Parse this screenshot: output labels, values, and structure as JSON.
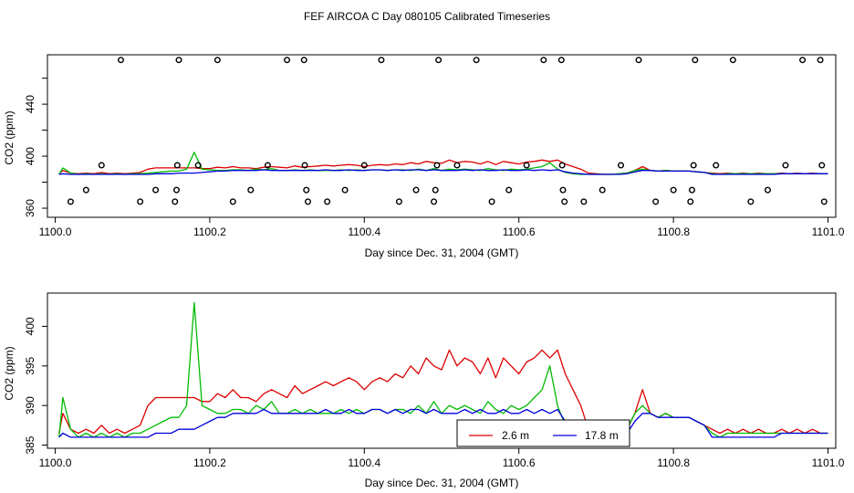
{
  "title": "FEF AIRCOA C  Day 080105  Calibrated Timeseries",
  "colors": {
    "red": "#dd0000",
    "green": "#00bb00",
    "blue": "#0000dd",
    "axis": "#000000"
  },
  "chart_data": [
    {
      "type": "line",
      "xlabel": "Day since Dec. 31, 2004 (GMT)",
      "ylabel": "CO2 (ppm)",
      "xlim": [
        1099.99,
        1101.01
      ],
      "ylim": [
        353,
        478
      ],
      "xticks": [
        1100.0,
        1100.2,
        1100.4,
        1100.6,
        1100.8,
        1101.0
      ],
      "xtick_labels": [
        "1100.0",
        "1100.2",
        "1100.4",
        "1100.6",
        "1100.8",
        "1101.0"
      ],
      "yticks": [
        360,
        380,
        400,
        420,
        440,
        460
      ],
      "ytick_labels": [
        "360",
        "",
        "400",
        "",
        "440",
        ""
      ],
      "x": [
        1100.005,
        1100.01,
        1100.02,
        1100.03,
        1100.04,
        1100.05,
        1100.06,
        1100.07,
        1100.08,
        1100.09,
        1100.1,
        1100.11,
        1100.12,
        1100.13,
        1100.14,
        1100.15,
        1100.16,
        1100.17,
        1100.18,
        1100.19,
        1100.2,
        1100.21,
        1100.22,
        1100.23,
        1100.24,
        1100.25,
        1100.26,
        1100.27,
        1100.28,
        1100.29,
        1100.3,
        1100.31,
        1100.32,
        1100.33,
        1100.34,
        1100.35,
        1100.36,
        1100.37,
        1100.38,
        1100.39,
        1100.4,
        1100.41,
        1100.42,
        1100.43,
        1100.44,
        1100.45,
        1100.46,
        1100.47,
        1100.48,
        1100.49,
        1100.5,
        1100.51,
        1100.52,
        1100.53,
        1100.54,
        1100.55,
        1100.56,
        1100.57,
        1100.58,
        1100.59,
        1100.6,
        1100.61,
        1100.62,
        1100.63,
        1100.64,
        1100.65,
        1100.66,
        1100.67,
        1100.68,
        1100.69,
        1100.7,
        1100.71,
        1100.72,
        1100.73,
        1100.74,
        1100.75,
        1100.76,
        1100.77,
        1100.78,
        1100.79,
        1100.8,
        1100.81,
        1100.82,
        1100.83,
        1100.84,
        1100.85,
        1100.86,
        1100.87,
        1100.88,
        1100.89,
        1100.9,
        1100.91,
        1100.92,
        1100.93,
        1100.94,
        1100.95,
        1100.96,
        1100.97,
        1100.98,
        1100.99,
        1101.0
      ],
      "series": [
        {
          "name": "2.6 m",
          "color": "#dd0000",
          "values": [
            386.5,
            389,
            387,
            386.5,
            387,
            386.5,
            387.5,
            386.5,
            387,
            386.5,
            387,
            387.5,
            390,
            391,
            391,
            391,
            391,
            391,
            391,
            390.5,
            390.5,
            391.5,
            391,
            392,
            391,
            391,
            390.5,
            391.5,
            392,
            391.5,
            391,
            392.5,
            391.5,
            392,
            392.5,
            393,
            392.5,
            393,
            393.5,
            393,
            392,
            393,
            393.5,
            393,
            394,
            393.5,
            395,
            394,
            396,
            395,
            394.5,
            397,
            395,
            396,
            395.5,
            394,
            396,
            393.5,
            396,
            395,
            394,
            395.5,
            396,
            397,
            396,
            397,
            394,
            392,
            390,
            387,
            386.5,
            386,
            386,
            386.5,
            387,
            389,
            392,
            389,
            388.5,
            389,
            388.5,
            388.5,
            388.5,
            388,
            387.5,
            387,
            386.5,
            387,
            386.5,
            387,
            386.5,
            387,
            386.5,
            386.5,
            387,
            386.5,
            387,
            386.5,
            387,
            386.5,
            386.5
          ]
        },
        {
          "name": "",
          "color": "#00bb00",
          "values": [
            386,
            391,
            387,
            386,
            386.5,
            386,
            386.5,
            386,
            386.5,
            386,
            386.5,
            386.5,
            387,
            387.5,
            388,
            388.5,
            388.5,
            390,
            403,
            390,
            389.5,
            389,
            389,
            389.5,
            389.5,
            389,
            390,
            389.5,
            390.5,
            389,
            389,
            389.5,
            389,
            389.5,
            389,
            389,
            389,
            389.5,
            389,
            389.5,
            389,
            389.5,
            389.5,
            389,
            389.5,
            389.5,
            389,
            390,
            389,
            390.5,
            389,
            390,
            389.5,
            390,
            389.5,
            389,
            390.5,
            389.5,
            389,
            390,
            389.5,
            390,
            391,
            392,
            395,
            390,
            387.5,
            386.5,
            386,
            386,
            386,
            386,
            386,
            386.5,
            387,
            389,
            390,
            389,
            388.5,
            389,
            388.5,
            388.5,
            388.5,
            388,
            387.5,
            386.5,
            386,
            386.5,
            386.5,
            386.5,
            386.5,
            386.5,
            386.5,
            386.5,
            386.5,
            386.5,
            386.5,
            386.5,
            386.5,
            386.5,
            386.5
          ]
        },
        {
          "name": "17.8 m",
          "color": "#0000dd",
          "values": [
            386,
            386.5,
            386,
            386,
            386,
            386,
            386,
            386,
            386,
            386,
            386,
            386,
            386,
            386.5,
            386.5,
            386.5,
            387,
            387,
            387,
            387.5,
            388,
            388.5,
            388.5,
            389,
            389,
            389,
            389,
            389.5,
            389,
            389,
            389,
            389,
            389,
            389,
            389,
            389.5,
            389,
            389,
            389.5,
            389,
            389,
            389.5,
            389.5,
            389,
            389.5,
            389,
            389.5,
            389.5,
            389,
            389.5,
            389,
            389,
            389,
            389.5,
            389,
            389.5,
            389,
            389,
            389.5,
            389,
            389,
            389.5,
            389,
            389.5,
            389,
            389.5,
            388,
            387,
            386.5,
            386,
            386,
            386,
            386,
            386,
            386.5,
            388,
            389,
            389,
            388.5,
            388.5,
            388.5,
            388.5,
            388.5,
            388,
            387.5,
            386,
            386,
            386,
            386,
            386,
            386,
            386,
            386,
            386,
            386.5,
            386.5,
            386.5,
            386.5,
            386.5,
            386.5,
            386.5
          ]
        }
      ],
      "calibration_points": [
        {
          "x": 1100.02,
          "y": 365
        },
        {
          "x": 1100.04,
          "y": 374
        },
        {
          "x": 1100.06,
          "y": 393
        },
        {
          "x": 1100.085,
          "y": 474
        },
        {
          "x": 1100.11,
          "y": 365
        },
        {
          "x": 1100.13,
          "y": 374
        },
        {
          "x": 1100.155,
          "y": 365
        },
        {
          "x": 1100.157,
          "y": 374
        },
        {
          "x": 1100.158,
          "y": 393
        },
        {
          "x": 1100.16,
          "y": 474
        },
        {
          "x": 1100.185,
          "y": 393
        },
        {
          "x": 1100.21,
          "y": 474
        },
        {
          "x": 1100.23,
          "y": 365
        },
        {
          "x": 1100.253,
          "y": 374
        },
        {
          "x": 1100.275,
          "y": 393
        },
        {
          "x": 1100.3,
          "y": 474
        },
        {
          "x": 1100.322,
          "y": 474
        },
        {
          "x": 1100.323,
          "y": 393
        },
        {
          "x": 1100.325,
          "y": 374
        },
        {
          "x": 1100.327,
          "y": 365
        },
        {
          "x": 1100.352,
          "y": 365
        },
        {
          "x": 1100.375,
          "y": 374
        },
        {
          "x": 1100.4,
          "y": 393
        },
        {
          "x": 1100.422,
          "y": 474
        },
        {
          "x": 1100.445,
          "y": 365
        },
        {
          "x": 1100.467,
          "y": 374
        },
        {
          "x": 1100.49,
          "y": 365
        },
        {
          "x": 1100.492,
          "y": 374
        },
        {
          "x": 1100.494,
          "y": 393
        },
        {
          "x": 1100.496,
          "y": 474
        },
        {
          "x": 1100.52,
          "y": 393
        },
        {
          "x": 1100.545,
          "y": 474
        },
        {
          "x": 1100.565,
          "y": 365
        },
        {
          "x": 1100.587,
          "y": 374
        },
        {
          "x": 1100.61,
          "y": 393
        },
        {
          "x": 1100.632,
          "y": 474
        },
        {
          "x": 1100.655,
          "y": 474
        },
        {
          "x": 1100.656,
          "y": 393
        },
        {
          "x": 1100.657,
          "y": 374
        },
        {
          "x": 1100.659,
          "y": 365
        },
        {
          "x": 1100.684,
          "y": 365
        },
        {
          "x": 1100.708,
          "y": 374
        },
        {
          "x": 1100.732,
          "y": 393
        },
        {
          "x": 1100.755,
          "y": 474
        },
        {
          "x": 1100.777,
          "y": 365
        },
        {
          "x": 1100.8,
          "y": 374
        },
        {
          "x": 1100.822,
          "y": 365
        },
        {
          "x": 1100.824,
          "y": 374
        },
        {
          "x": 1100.826,
          "y": 393
        },
        {
          "x": 1100.828,
          "y": 474
        },
        {
          "x": 1100.855,
          "y": 393
        },
        {
          "x": 1100.877,
          "y": 474
        },
        {
          "x": 1100.9,
          "y": 365
        },
        {
          "x": 1100.922,
          "y": 374
        },
        {
          "x": 1100.945,
          "y": 393
        },
        {
          "x": 1100.967,
          "y": 474
        },
        {
          "x": 1100.99,
          "y": 474
        },
        {
          "x": 1100.992,
          "y": 393
        },
        {
          "x": 1100.995,
          "y": 365
        }
      ]
    },
    {
      "type": "line",
      "xlabel": "Day since Dec. 31, 2004 (GMT)",
      "ylabel": "CO2 (ppm)",
      "xlim": [
        1099.99,
        1101.01
      ],
      "ylim": [
        384.6,
        404.2
      ],
      "xticks": [
        1100.0,
        1100.2,
        1100.4,
        1100.6,
        1100.8,
        1101.0
      ],
      "xtick_labels": [
        "1100.0",
        "1100.2",
        "1100.4",
        "1100.6",
        "1100.8",
        "1101.0"
      ],
      "yticks": [
        385,
        390,
        395,
        400
      ],
      "ytick_labels": [
        "385",
        "390",
        "395",
        "400"
      ],
      "legend": {
        "placement": "bottom-center",
        "entries": [
          {
            "label": "2.6 m",
            "color": "#dd0000"
          },
          {
            "label": "17.8 m",
            "color": "#0000dd"
          }
        ]
      }
    }
  ]
}
